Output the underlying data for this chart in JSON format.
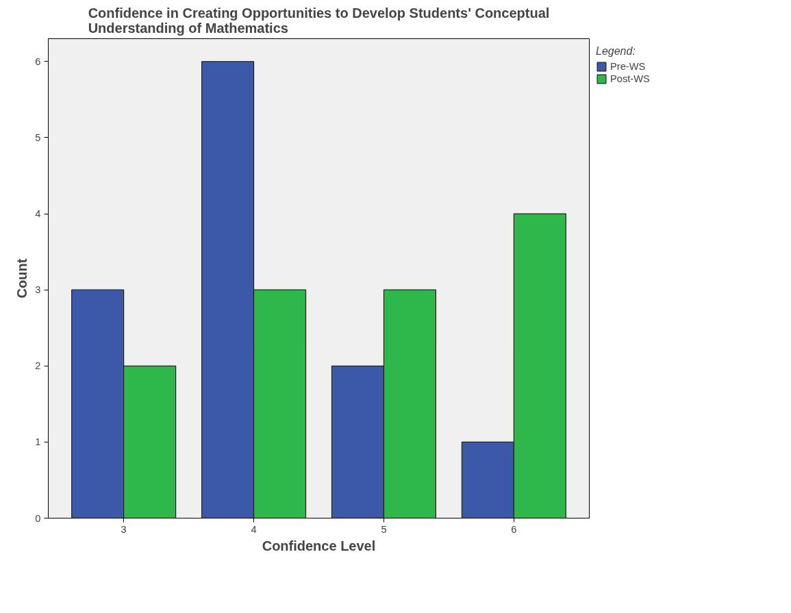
{
  "chart_data": {
    "type": "bar",
    "title": "Confidence in Creating Opportunities to Develop Students' Conceptual Understanding of Mathematics",
    "xlabel": "Confidence Level",
    "ylabel": "Count",
    "legend_title": "Legend:",
    "legend": "top right",
    "categories": [
      "3",
      "4",
      "5",
      "6"
    ],
    "series": [
      {
        "name": "Pre-WS",
        "color": "#3c58a8",
        "values": [
          3,
          6,
          2,
          1
        ]
      },
      {
        "name": "Post-WS",
        "color": "#2eb84a",
        "values": [
          2,
          3,
          3,
          4
        ]
      }
    ],
    "ylim": [
      0,
      6.3
    ],
    "yticks": [
      0,
      1,
      2,
      3,
      4,
      5,
      6
    ],
    "grid": false
  }
}
